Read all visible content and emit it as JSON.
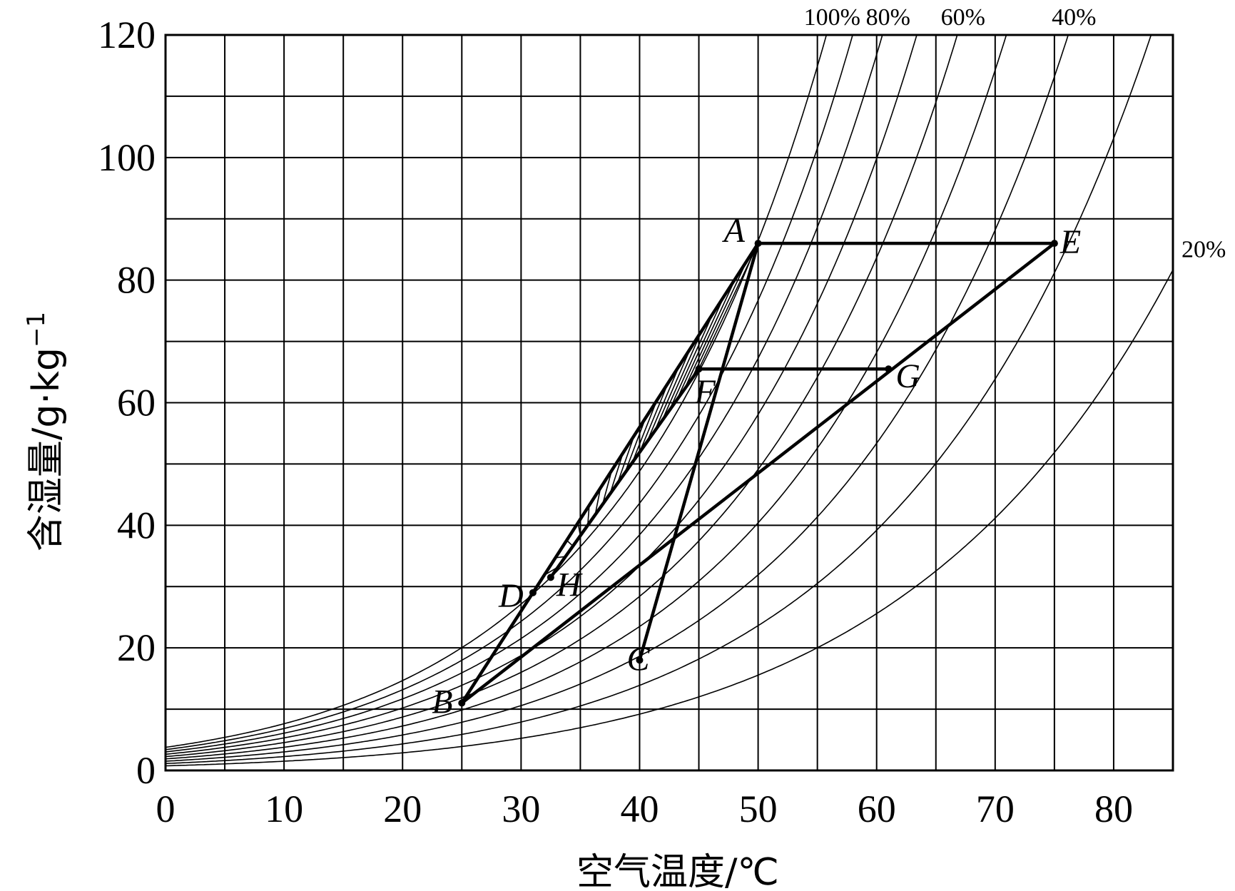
{
  "chart_data": {
    "type": "line",
    "xlabel": "空气温度/℃",
    "ylabel": "含湿量/g·kg",
    "ylabel_superscript": "−1",
    "xlim": [
      0,
      85
    ],
    "ylim": [
      0,
      120
    ],
    "xticks": [
      0,
      10,
      20,
      30,
      40,
      50,
      60,
      70,
      80
    ],
    "yticks": [
      0,
      20,
      40,
      60,
      80,
      100,
      120
    ],
    "xtick_labels": [
      "0",
      "10",
      "20",
      "30",
      "40",
      "50",
      "60",
      "70",
      "80"
    ],
    "ytick_labels": [
      "0",
      "20",
      "40",
      "60",
      "80",
      "100",
      "120"
    ],
    "grid": true,
    "grid_x_step": 5,
    "grid_y_step": 10,
    "rh_curves": [
      {
        "rh": 100,
        "label": "100%"
      },
      {
        "rh": 90,
        "label": ""
      },
      {
        "rh": 80,
        "label": "80%"
      },
      {
        "rh": 70,
        "label": ""
      },
      {
        "rh": 60,
        "label": "60%"
      },
      {
        "rh": 50,
        "label": ""
      },
      {
        "rh": 40,
        "label": "40%"
      },
      {
        "rh": 30,
        "label": ""
      },
      {
        "rh": 20,
        "label": "20%"
      }
    ],
    "points": [
      {
        "name": "A",
        "x": 50,
        "y": 86
      },
      {
        "name": "B",
        "x": 25,
        "y": 11
      },
      {
        "name": "C",
        "x": 40,
        "y": 18
      },
      {
        "name": "D",
        "x": 31,
        "y": 29
      },
      {
        "name": "E",
        "x": 75,
        "y": 86
      },
      {
        "name": "F",
        "x": 45,
        "y": 65.5
      },
      {
        "name": "G",
        "x": 61,
        "y": 65.5
      },
      {
        "name": "H",
        "x": 32.5,
        "y": 31.5
      }
    ],
    "segments": [
      [
        "A",
        "E"
      ],
      [
        "E",
        "B"
      ],
      [
        "F",
        "G"
      ],
      [
        "A",
        "B"
      ],
      [
        "A",
        "C"
      ],
      [
        "F",
        "H"
      ]
    ]
  }
}
